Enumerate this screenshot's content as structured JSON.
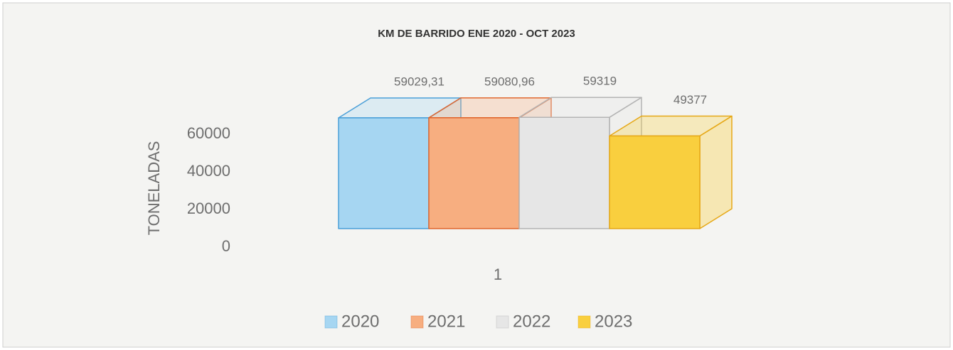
{
  "chart_data": {
    "type": "bar3d",
    "title": "KM DE BARRIDO ENE 2020 - OCT 2023",
    "y_label": "TONELADAS",
    "categories": [
      "1"
    ],
    "series": [
      {
        "name": "2020",
        "color": "#a6d6f2",
        "edge": "#4a9fd8",
        "values": [
          59029.31
        ],
        "value_labels": [
          "59029,31"
        ]
      },
      {
        "name": "2021",
        "color": "#f7ae80",
        "edge": "#e0662e",
        "values": [
          59080.96
        ],
        "value_labels": [
          "59080,96"
        ]
      },
      {
        "name": "2022",
        "color": "#e6e6e6",
        "edge": "#b4b4b4",
        "values": [
          59319
        ]
      },
      {
        "name": "2023",
        "color": "#f9cf3e",
        "edge": "#e6a817",
        "values": [
          49377
        ]
      }
    ],
    "ylim": [
      0,
      60000
    ],
    "yticks": [
      0,
      20000,
      40000,
      60000
    ],
    "legend": "bottom"
  }
}
